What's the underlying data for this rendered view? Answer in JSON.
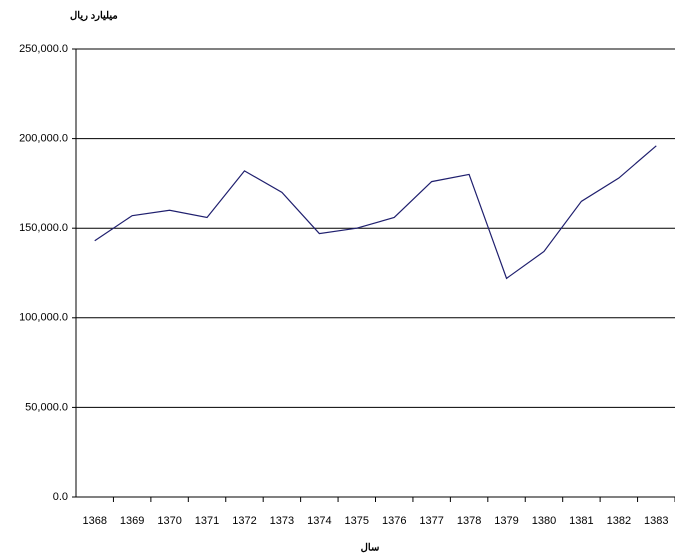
{
  "chart_data": {
    "type": "line",
    "title": "میلیارد ریال",
    "x_label": "سال",
    "categories": [
      "1368",
      "1369",
      "1370",
      "1371",
      "1372",
      "1373",
      "1374",
      "1375",
      "1376",
      "1377",
      "1378",
      "1379",
      "1380",
      "1381",
      "1382",
      "1383"
    ],
    "series": [
      {
        "name": "",
        "color": "#1f1f6e",
        "values": [
          143000,
          157000,
          160000,
          156000,
          182000,
          170000,
          147000,
          150000,
          156000,
          176000,
          180000,
          122000,
          137000,
          165000,
          178000,
          196000
        ]
      }
    ],
    "ylim": [
      0,
      250000
    ],
    "yticks": [
      {
        "value": 0,
        "label": "0.0"
      },
      {
        "value": 50000,
        "label": "50,000.0"
      },
      {
        "value": 100000,
        "label": "100,000.0"
      },
      {
        "value": 150000,
        "label": "150,000.0"
      },
      {
        "value": 200000,
        "label": "200,000.0"
      },
      {
        "value": 250000,
        "label": "250,000.0"
      }
    ],
    "grid": true
  }
}
